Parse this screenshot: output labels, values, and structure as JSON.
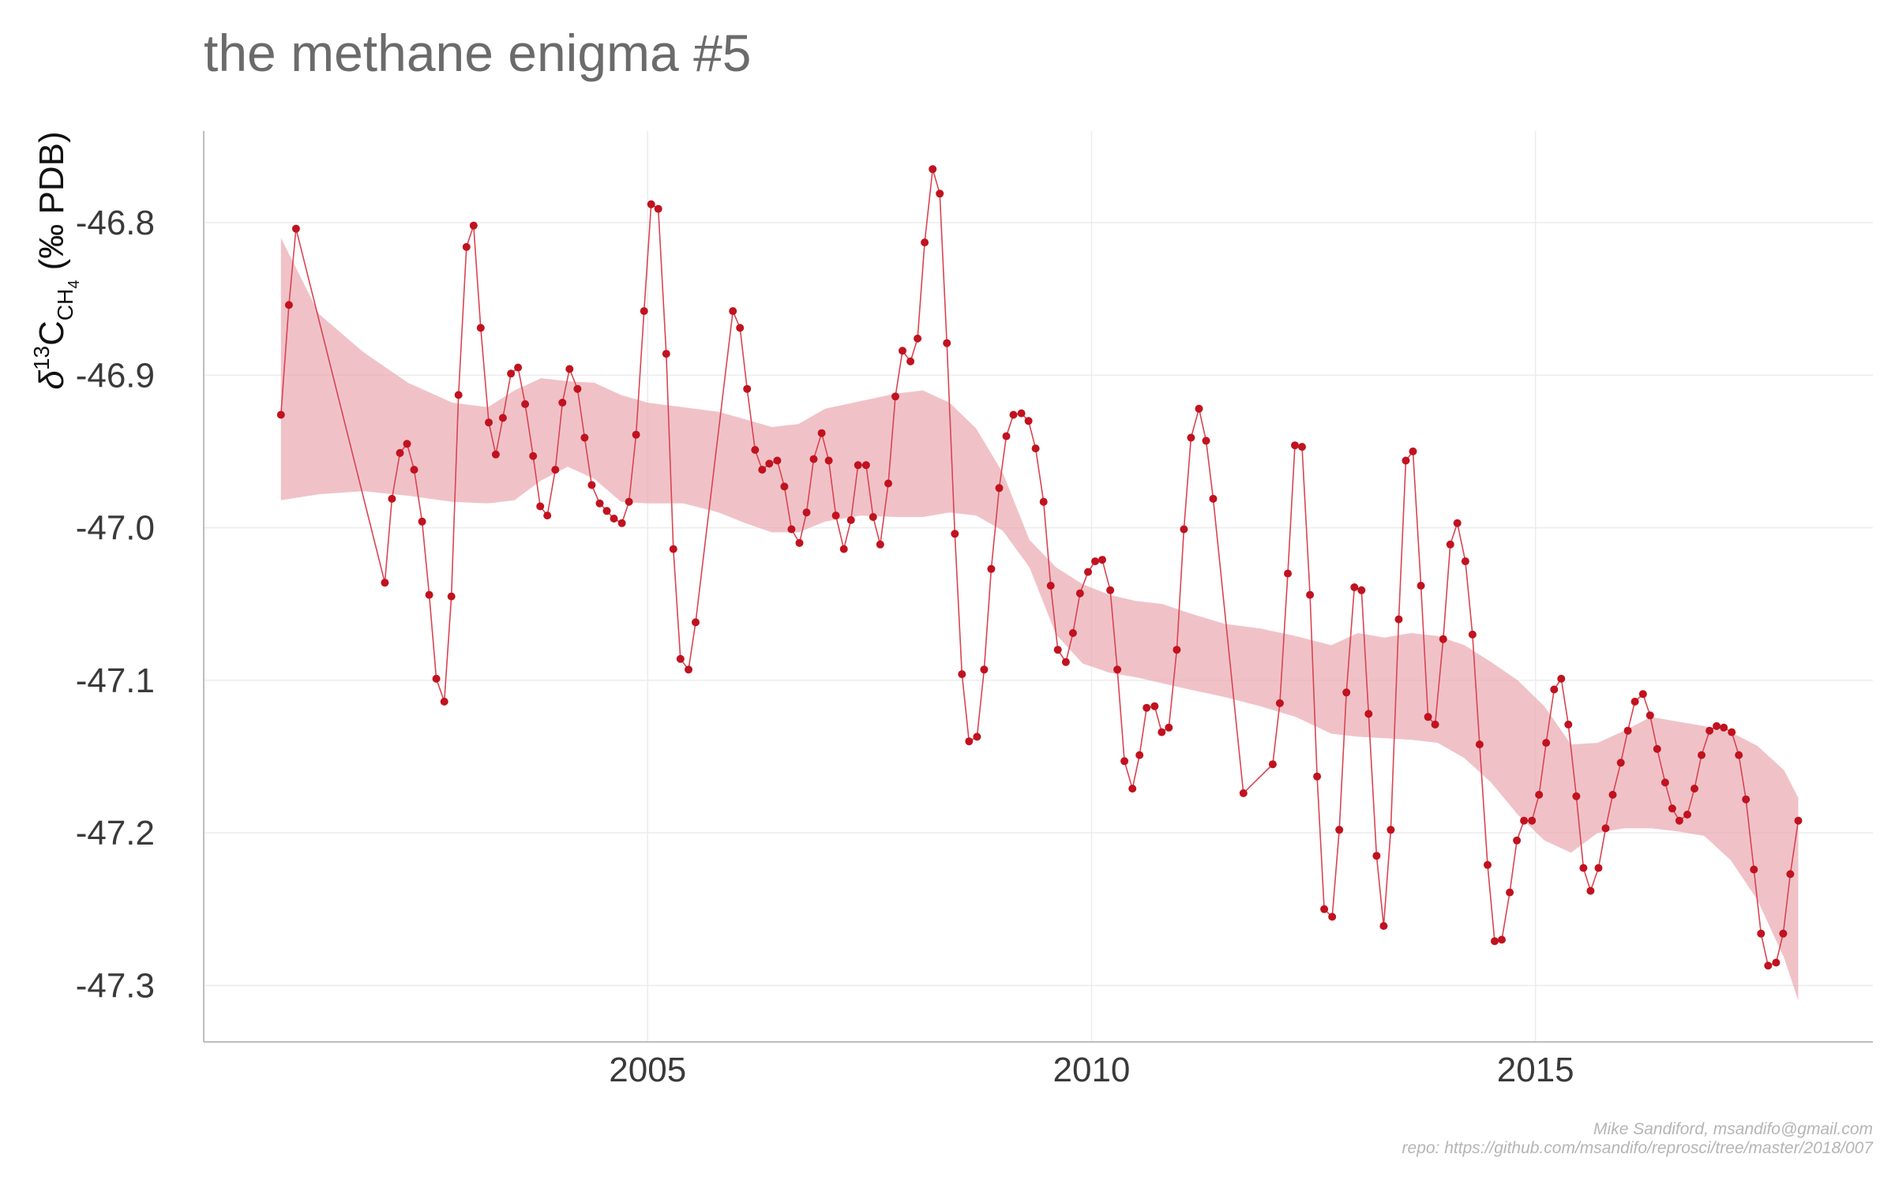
{
  "chart_data": {
    "type": "line",
    "title": "the methane enigma #5",
    "ylabel": {
      "delta": "δ",
      "sup": "13",
      "c": "C",
      "sub": "CH",
      "subsub": "4",
      "unit": " (‰ PDB)"
    },
    "xlim": [
      2000.0,
      2018.8
    ],
    "ylim": [
      -47.337,
      -46.74
    ],
    "x_ticks": [
      2005,
      2010,
      2015
    ],
    "y_ticks": [
      -46.8,
      -46.9,
      -47.0,
      -47.1,
      -47.2,
      -47.3
    ],
    "y_tick_labels": [
      "-46.8",
      "-46.9",
      "-47.0",
      "-47.1",
      "-47.2",
      "-47.3"
    ],
    "grid": true,
    "colors": {
      "points": "#c1121f",
      "line": "#d94452",
      "band": "#e9a8b0"
    },
    "series": [
      {
        "x": [
          2000.87,
          2000.96,
          2001.04,
          2002.04,
          2002.12,
          2002.21,
          2002.29,
          2002.37,
          2002.46,
          2002.54,
          2002.62,
          2002.71,
          2002.79,
          2002.87,
          2002.96,
          2003.04,
          2003.12,
          2003.21,
          2003.29,
          2003.37,
          2003.46,
          2003.54,
          2003.62,
          2003.71,
          2003.79,
          2003.87,
          2003.96,
          2004.04,
          2004.12,
          2004.21,
          2004.29,
          2004.37,
          2004.46,
          2004.54,
          2004.62,
          2004.71,
          2004.79,
          2004.87,
          2004.96,
          2005.04,
          2005.12,
          2005.21,
          2005.29,
          2005.37,
          2005.46,
          2005.54,
          2005.96,
          2006.04,
          2006.12,
          2006.21,
          2006.29,
          2006.37,
          2006.46,
          2006.54,
          2006.62,
          2006.71,
          2006.79,
          2006.87,
          2006.96,
          2007.04,
          2007.12,
          2007.21,
          2007.29,
          2007.37,
          2007.46,
          2007.54,
          2007.62,
          2007.71,
          2007.79,
          2007.87,
          2007.96,
          2008.04,
          2008.12,
          2008.21,
          2008.29,
          2008.37,
          2008.46,
          2008.54,
          2008.62,
          2008.71,
          2008.79,
          2008.87,
          2008.96,
          2009.04,
          2009.12,
          2009.21,
          2009.29,
          2009.37,
          2009.46,
          2009.54,
          2009.62,
          2009.71,
          2009.79,
          2009.87,
          2009.96,
          2010.04,
          2010.12,
          2010.21,
          2010.29,
          2010.37,
          2010.46,
          2010.54,
          2010.62,
          2010.71,
          2010.79,
          2010.87,
          2010.96,
          2011.04,
          2011.12,
          2011.21,
          2011.29,
          2011.37,
          2011.71,
          2012.04,
          2012.12,
          2012.21,
          2012.29,
          2012.37,
          2012.46,
          2012.54,
          2012.62,
          2012.71,
          2012.79,
          2012.87,
          2012.96,
          2013.04,
          2013.12,
          2013.21,
          2013.29,
          2013.37,
          2013.46,
          2013.54,
          2013.62,
          2013.71,
          2013.79,
          2013.87,
          2013.96,
          2014.04,
          2014.12,
          2014.21,
          2014.29,
          2014.37,
          2014.46,
          2014.54,
          2014.62,
          2014.71,
          2014.79,
          2014.87,
          2014.96,
          2015.04,
          2015.12,
          2015.21,
          2015.29,
          2015.37,
          2015.46,
          2015.54,
          2015.62,
          2015.71,
          2015.79,
          2015.87,
          2015.96,
          2016.04,
          2016.12,
          2016.21,
          2016.29,
          2016.37,
          2016.46,
          2016.54,
          2016.62,
          2016.71,
          2016.79,
          2016.87,
          2016.96,
          2017.04,
          2017.12,
          2017.21,
          2017.29,
          2017.37,
          2017.46,
          2017.54,
          2017.62,
          2017.71,
          2017.79,
          2017.87,
          2017.96
        ],
        "y": [
          -46.926,
          -46.854,
          -46.804,
          -47.036,
          -46.981,
          -46.951,
          -46.945,
          -46.962,
          -46.996,
          -47.044,
          -47.099,
          -47.114,
          -47.045,
          -46.913,
          -46.816,
          -46.802,
          -46.869,
          -46.931,
          -46.952,
          -46.928,
          -46.899,
          -46.895,
          -46.919,
          -46.953,
          -46.986,
          -46.992,
          -46.962,
          -46.918,
          -46.896,
          -46.909,
          -46.941,
          -46.972,
          -46.984,
          -46.989,
          -46.994,
          -46.997,
          -46.983,
          -46.939,
          -46.858,
          -46.788,
          -46.791,
          -46.886,
          -47.014,
          -47.086,
          -47.093,
          -47.062,
          -46.858,
          -46.869,
          -46.909,
          -46.949,
          -46.962,
          -46.958,
          -46.956,
          -46.973,
          -47.001,
          -47.01,
          -46.99,
          -46.955,
          -46.938,
          -46.956,
          -46.992,
          -47.014,
          -46.995,
          -46.959,
          -46.959,
          -46.993,
          -47.011,
          -46.971,
          -46.914,
          -46.884,
          -46.891,
          -46.876,
          -46.813,
          -46.765,
          -46.781,
          -46.879,
          -47.004,
          -47.096,
          -47.14,
          -47.137,
          -47.093,
          -47.027,
          -46.974,
          -46.94,
          -46.926,
          -46.925,
          -46.93,
          -46.948,
          -46.983,
          -47.038,
          -47.08,
          -47.088,
          -47.069,
          -47.043,
          -47.029,
          -47.022,
          -47.021,
          -47.041,
          -47.093,
          -47.153,
          -47.171,
          -47.149,
          -47.118,
          -47.117,
          -47.134,
          -47.131,
          -47.08,
          -47.001,
          -46.941,
          -46.922,
          -46.943,
          -46.981,
          -47.174,
          -47.155,
          -47.115,
          -47.03,
          -46.946,
          -46.947,
          -47.044,
          -47.163,
          -47.25,
          -47.255,
          -47.198,
          -47.108,
          -47.039,
          -47.041,
          -47.122,
          -47.215,
          -47.261,
          -47.198,
          -47.06,
          -46.956,
          -46.95,
          -47.038,
          -47.124,
          -47.129,
          -47.073,
          -47.011,
          -46.997,
          -47.022,
          -47.07,
          -47.142,
          -47.221,
          -47.271,
          -47.27,
          -47.239,
          -47.205,
          -47.192,
          -47.192,
          -47.175,
          -47.141,
          -47.106,
          -47.099,
          -47.129,
          -47.176,
          -47.223,
          -47.238,
          -47.223,
          -47.197,
          -47.175,
          -47.154,
          -47.133,
          -47.114,
          -47.109,
          -47.123,
          -47.145,
          -47.167,
          -47.184,
          -47.192,
          -47.188,
          -47.171,
          -47.149,
          -47.133,
          -47.13,
          -47.131,
          -47.134,
          -47.149,
          -47.178,
          -47.224,
          -47.266,
          -47.287,
          -47.285,
          -47.266,
          -47.227,
          -47.192
        ]
      }
    ],
    "band": {
      "x": [
        2000.87,
        2001.3,
        2001.8,
        2002.3,
        2002.8,
        2003.2,
        2003.5,
        2003.8,
        2004.1,
        2004.4,
        2004.7,
        2005.0,
        2005.4,
        2005.8,
        2006.1,
        2006.4,
        2006.7,
        2007.0,
        2007.4,
        2007.8,
        2008.1,
        2008.4,
        2008.7,
        2009.0,
        2009.3,
        2009.6,
        2009.9,
        2010.2,
        2010.5,
        2010.8,
        2011.1,
        2011.5,
        2011.9,
        2012.3,
        2012.7,
        2013.0,
        2013.3,
        2013.6,
        2013.9,
        2014.2,
        2014.5,
        2014.8,
        2015.1,
        2015.4,
        2015.7,
        2016.0,
        2016.3,
        2016.6,
        2016.9,
        2017.2,
        2017.5,
        2017.8,
        2017.96
      ],
      "lower": [
        -46.982,
        -46.978,
        -46.976,
        -46.979,
        -46.983,
        -46.984,
        -46.982,
        -46.969,
        -46.96,
        -46.968,
        -46.983,
        -46.984,
        -46.984,
        -46.99,
        -46.997,
        -47.003,
        -47.003,
        -46.996,
        -46.992,
        -46.993,
        -46.993,
        -46.99,
        -46.992,
        -47.002,
        -47.026,
        -47.07,
        -47.089,
        -47.095,
        -47.098,
        -47.102,
        -47.106,
        -47.111,
        -47.117,
        -47.124,
        -47.135,
        -47.137,
        -47.138,
        -47.139,
        -47.141,
        -47.151,
        -47.167,
        -47.188,
        -47.205,
        -47.213,
        -47.2,
        -47.197,
        -47.197,
        -47.199,
        -47.202,
        -47.218,
        -47.244,
        -47.282,
        -47.31
      ],
      "upper": [
        -46.81,
        -46.86,
        -46.885,
        -46.905,
        -46.918,
        -46.921,
        -46.91,
        -46.902,
        -46.904,
        -46.905,
        -46.913,
        -46.918,
        -46.921,
        -46.924,
        -46.929,
        -46.934,
        -46.932,
        -46.922,
        -46.917,
        -46.912,
        -46.91,
        -46.918,
        -46.935,
        -46.964,
        -47.008,
        -47.026,
        -47.037,
        -47.044,
        -47.048,
        -47.05,
        -47.056,
        -47.063,
        -47.066,
        -47.071,
        -47.077,
        -47.069,
        -47.072,
        -47.069,
        -47.071,
        -47.077,
        -47.088,
        -47.1,
        -47.117,
        -47.142,
        -47.141,
        -47.133,
        -47.124,
        -47.127,
        -47.13,
        -47.134,
        -47.143,
        -47.159,
        -47.177
      ]
    }
  },
  "credits": {
    "author": "Mike Sandiford, msandifo@gmail.com",
    "repo": "repo: https://github.com/msandifo/reprosci/tree/master/2018/007"
  }
}
